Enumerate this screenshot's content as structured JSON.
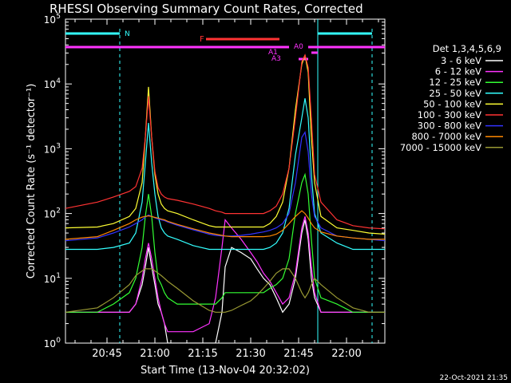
{
  "chart_data": {
    "type": "line",
    "title": "RHESSI Observing Summary Count Rates, Corrected",
    "xlabel": "Start Time (13-Nov-04 20:32:02)",
    "ylabel": "Corrected Count Rate (s⁻¹ detector⁻¹)",
    "ylog": true,
    "ylim": [
      1,
      100000
    ],
    "xlim_min_after_2032": [
      0,
      100
    ],
    "x_ticks": [
      {
        "label": "20:45",
        "min": 13
      },
      {
        "label": "21:00",
        "min": 28
      },
      {
        "label": "21:15",
        "min": 43
      },
      {
        "label": "21:30",
        "min": 58
      },
      {
        "label": "21:45",
        "min": 73
      },
      {
        "label": "22:00",
        "min": 88
      }
    ],
    "y_ticks": [
      {
        "v": 1,
        "label": "10",
        "exp": "0"
      },
      {
        "v": 10,
        "label": "10",
        "exp": "1"
      },
      {
        "v": 100,
        "label": "10",
        "exp": "2"
      },
      {
        "v": 1000,
        "label": "10",
        "exp": "3"
      },
      {
        "v": 10000,
        "label": "10",
        "exp": "4"
      },
      {
        "v": 100000,
        "label": "10",
        "exp": "5"
      }
    ],
    "legend_title": "Det 1,3,4,5,6,9",
    "legend_position": "right",
    "series": [
      {
        "name": "3 - 6 keV",
        "color": "#ffffff",
        "x": [
          0,
          10,
          15,
          20,
          22,
          24,
          25,
          26,
          27,
          28,
          29,
          30,
          31,
          32,
          35,
          40,
          45,
          47,
          49,
          50,
          52,
          55,
          58,
          60,
          62,
          64,
          66,
          68,
          70,
          72,
          74,
          75,
          76,
          77,
          78,
          80,
          85,
          90,
          95,
          100
        ],
        "y": [
          3,
          3,
          3,
          3,
          4,
          8,
          15,
          30,
          15,
          8,
          4,
          3,
          2,
          1,
          1,
          1,
          1,
          1,
          3,
          15,
          30,
          25,
          20,
          14,
          10,
          8,
          5,
          3,
          4,
          10,
          50,
          80,
          40,
          10,
          5,
          3,
          3,
          3,
          3,
          3
        ]
      },
      {
        "name": "6 - 12 keV",
        "color": "#ff33ff",
        "x": [
          0,
          10,
          15,
          20,
          22,
          24,
          25,
          26,
          27,
          28,
          29,
          30,
          31,
          32,
          35,
          40,
          45,
          47,
          49,
          50,
          52,
          55,
          58,
          60,
          62,
          64,
          66,
          68,
          70,
          72,
          74,
          75,
          76,
          77,
          78,
          80,
          85,
          90,
          95,
          100
        ],
        "y": [
          3,
          3,
          3,
          3,
          4,
          10,
          20,
          35,
          20,
          10,
          5,
          3,
          2,
          1.5,
          1.5,
          1.5,
          2,
          5,
          30,
          80,
          60,
          40,
          25,
          18,
          12,
          9,
          6,
          4,
          5,
          12,
          60,
          90,
          50,
          15,
          6,
          3,
          3,
          3,
          3,
          3
        ]
      },
      {
        "name": "12 - 25 keV",
        "color": "#33ff33",
        "x": [
          0,
          10,
          15,
          20,
          22,
          24,
          25,
          26,
          27,
          28,
          29,
          30,
          31,
          32,
          35,
          40,
          45,
          47,
          49,
          50,
          52,
          55,
          58,
          60,
          62,
          64,
          66,
          68,
          70,
          72,
          74,
          75,
          76,
          77,
          78,
          80,
          85,
          90,
          95,
          100
        ],
        "y": [
          3,
          3,
          4,
          6,
          10,
          30,
          90,
          200,
          90,
          25,
          10,
          8,
          6,
          5,
          4,
          4,
          4,
          4,
          5,
          6,
          6,
          6,
          6,
          6,
          6,
          7,
          8,
          10,
          20,
          100,
          300,
          400,
          200,
          40,
          10,
          5,
          4,
          3,
          3,
          3
        ]
      },
      {
        "name": "25 - 50 keV",
        "color": "#33ffff",
        "x": [
          0,
          10,
          15,
          20,
          22,
          24,
          25,
          26,
          27,
          28,
          29,
          30,
          31,
          32,
          35,
          40,
          45,
          47,
          49,
          50,
          52,
          55,
          58,
          60,
          62,
          64,
          66,
          68,
          70,
          72,
          74,
          75,
          76,
          77,
          78,
          80,
          85,
          90,
          95,
          100
        ],
        "y": [
          28,
          28,
          30,
          35,
          50,
          150,
          600,
          2500,
          600,
          200,
          90,
          60,
          50,
          45,
          40,
          32,
          28,
          28,
          28,
          28,
          28,
          28,
          28,
          28,
          28,
          30,
          35,
          50,
          120,
          800,
          3000,
          6000,
          3000,
          400,
          100,
          50,
          35,
          28,
          28,
          28
        ]
      },
      {
        "name": "50 - 100 keV",
        "color": "#ffff33",
        "x": [
          0,
          10,
          15,
          20,
          22,
          24,
          25,
          26,
          27,
          28,
          29,
          30,
          31,
          32,
          35,
          40,
          45,
          47,
          49,
          50,
          52,
          55,
          58,
          60,
          62,
          64,
          66,
          68,
          70,
          72,
          74,
          75,
          76,
          77,
          78,
          80,
          85,
          90,
          95,
          100
        ],
        "y": [
          60,
          62,
          70,
          90,
          120,
          300,
          1500,
          9000,
          1500,
          400,
          200,
          140,
          120,
          110,
          100,
          80,
          65,
          62,
          62,
          62,
          62,
          62,
          62,
          62,
          62,
          70,
          90,
          150,
          500,
          4000,
          20000,
          28000,
          15000,
          1500,
          300,
          90,
          60,
          55,
          50,
          48
        ]
      },
      {
        "name": "100 - 300 keV",
        "color": "#ff3333",
        "x": [
          0,
          10,
          15,
          20,
          22,
          24,
          25,
          26,
          27,
          28,
          29,
          30,
          31,
          32,
          35,
          40,
          45,
          47,
          49,
          50,
          52,
          55,
          58,
          60,
          62,
          64,
          66,
          68,
          70,
          72,
          74,
          75,
          76,
          77,
          78,
          80,
          85,
          90,
          95,
          100
        ],
        "y": [
          120,
          150,
          180,
          220,
          260,
          500,
          1500,
          6500,
          1500,
          450,
          250,
          200,
          180,
          170,
          160,
          140,
          120,
          110,
          105,
          100,
          100,
          100,
          100,
          100,
          100,
          110,
          130,
          200,
          500,
          3000,
          22000,
          28000,
          18000,
          3000,
          400,
          150,
          80,
          65,
          60,
          58
        ]
      },
      {
        "name": "300 - 800 keV",
        "color": "#3333ff",
        "x": [
          0,
          10,
          15,
          20,
          22,
          24,
          25,
          26,
          27,
          28,
          29,
          30,
          31,
          32,
          35,
          40,
          45,
          47,
          49,
          50,
          52,
          55,
          58,
          60,
          62,
          64,
          66,
          68,
          70,
          72,
          74,
          75,
          76,
          77,
          78,
          80,
          85,
          90,
          95,
          100
        ],
        "y": [
          38,
          42,
          50,
          62,
          70,
          80,
          88,
          95,
          90,
          86,
          82,
          80,
          78,
          74,
          66,
          56,
          48,
          46,
          45,
          45,
          45,
          46,
          48,
          50,
          52,
          55,
          60,
          70,
          100,
          300,
          1500,
          1800,
          900,
          200,
          90,
          60,
          45,
          42,
          40,
          38
        ]
      },
      {
        "name": "800 - 7000 keV",
        "color": "#ff8800",
        "x": [
          0,
          10,
          15,
          20,
          22,
          24,
          25,
          26,
          27,
          28,
          29,
          30,
          31,
          32,
          35,
          40,
          45,
          47,
          49,
          50,
          52,
          55,
          58,
          60,
          62,
          64,
          66,
          68,
          70,
          72,
          74,
          75,
          76,
          77,
          78,
          80,
          85,
          90,
          95,
          100
        ],
        "y": [
          40,
          44,
          55,
          70,
          80,
          88,
          90,
          92,
          90,
          87,
          85,
          82,
          80,
          76,
          68,
          58,
          50,
          48,
          46,
          45,
          44,
          44,
          44,
          44,
          44,
          45,
          48,
          55,
          70,
          90,
          110,
          100,
          85,
          70,
          60,
          52,
          45,
          42,
          40,
          40
        ]
      },
      {
        "name": "7000 - 15000 keV",
        "color": "#999933",
        "x": [
          0,
          10,
          15,
          20,
          22,
          24,
          25,
          26,
          27,
          28,
          29,
          30,
          31,
          32,
          35,
          40,
          45,
          47,
          49,
          50,
          52,
          55,
          58,
          60,
          62,
          64,
          66,
          68,
          70,
          72,
          74,
          75,
          76,
          77,
          78,
          80,
          85,
          90,
          95,
          100
        ],
        "y": [
          3,
          3.5,
          5,
          8,
          11,
          13,
          14,
          14,
          14,
          13,
          12,
          11,
          10,
          9,
          7,
          4.5,
          3.2,
          3,
          3,
          3,
          3.2,
          3.8,
          4.5,
          5.5,
          7,
          9,
          12,
          14,
          14,
          10,
          6,
          5,
          6,
          8,
          10,
          8,
          5,
          3.5,
          3,
          3
        ]
      }
    ],
    "annotations": [
      {
        "label": "N",
        "color": "#33ffff"
      },
      {
        "label": "F",
        "color": "#ff3333"
      },
      {
        "label": "A0",
        "color": "#ff33ff"
      },
      {
        "label": "A1",
        "color": "#ff33ff"
      },
      {
        "label": "A3",
        "color": "#ff33ff"
      }
    ],
    "timestamp": "22-Oct-2021 21:35"
  }
}
